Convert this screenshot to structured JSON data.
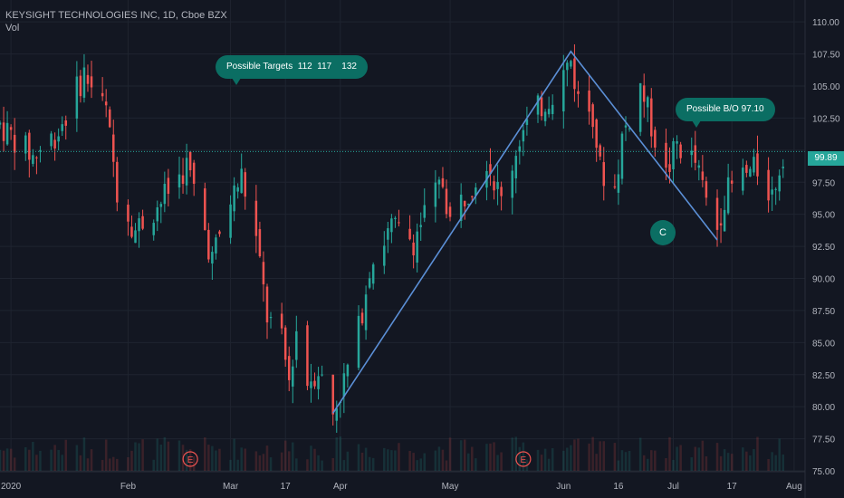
{
  "header": {
    "symbol_line": "KEYSIGHT TECHNOLOGIES INC, 1D, Cboe BZX",
    "volume_label": "Vol"
  },
  "annotations": {
    "targets": "Possible Targets  112  117    132",
    "breakout": "Possible B/O 97.10",
    "wave_label": "C",
    "earnings_marker": "E"
  },
  "last_price": "99.89",
  "colors": {
    "background": "#131722",
    "up": "#26a69a",
    "down": "#ef5350",
    "trendline": "#5b8fd6",
    "bubble": "#0b6e63",
    "grid": "#1f2430",
    "earnings_marker": "#ef5350"
  },
  "chart_data": {
    "type": "candlestick",
    "title": "KEYSIGHT TECHNOLOGIES INC, 1D, Cboe BZX",
    "ylim": [
      75,
      111
    ],
    "y_ticks": [
      75.0,
      77.5,
      80.0,
      82.5,
      85.0,
      87.5,
      90.0,
      92.5,
      95.0,
      97.5,
      100.0,
      102.5,
      105.0,
      107.5,
      110.0
    ],
    "y_tick_labels": [
      "75.00",
      "77.50",
      "80.00",
      "82.50",
      "85.00",
      "87.50",
      "90.00",
      "92.50",
      "95.00",
      "97.50",
      "",
      "102.50",
      "105.00",
      "107.50",
      "110.00"
    ],
    "x_range": [
      "2019-12-30",
      "2020-08-06"
    ],
    "x_ticks": [
      {
        "date": "2020-01-02",
        "label": "2020"
      },
      {
        "date": "2020-02-03",
        "label": "Feb"
      },
      {
        "date": "2020-03-02",
        "label": "Mar"
      },
      {
        "date": "2020-03-17",
        "label": "17"
      },
      {
        "date": "2020-04-01",
        "label": "Apr"
      },
      {
        "date": "2020-05-01",
        "label": "May"
      },
      {
        "date": "2020-06-01",
        "label": "Jun"
      },
      {
        "date": "2020-06-16",
        "label": "16"
      },
      {
        "date": "2020-07-01",
        "label": "Jul"
      },
      {
        "date": "2020-07-17",
        "label": "17"
      },
      {
        "date": "2020-08-03",
        "label": "Aug"
      }
    ],
    "grid": true,
    "last_price": 99.89,
    "anchors": [
      [
        "2019-12-30",
        102.0
      ],
      [
        "2020-01-08",
        99.5
      ],
      [
        "2020-01-15",
        101.5
      ],
      [
        "2020-01-22",
        106.0
      ],
      [
        "2020-01-28",
        103.0
      ],
      [
        "2020-01-31",
        97.0
      ],
      [
        "2020-02-05",
        93.8
      ],
      [
        "2020-02-12",
        96.0
      ],
      [
        "2020-02-19",
        98.8
      ],
      [
        "2020-02-21",
        97.0
      ],
      [
        "2020-02-26",
        91.5
      ],
      [
        "2020-03-02",
        96.0
      ],
      [
        "2020-03-05",
        98.0
      ],
      [
        "2020-03-09",
        93.0
      ],
      [
        "2020-03-12",
        87.0
      ],
      [
        "2020-03-16",
        85.0
      ],
      [
        "2020-03-18",
        82.0
      ],
      [
        "2020-03-20",
        86.0
      ],
      [
        "2020-03-23",
        82.0
      ],
      [
        "2020-03-26",
        83.0
      ],
      [
        "2020-03-30",
        79.5
      ],
      [
        "2020-04-02",
        82.0
      ],
      [
        "2020-04-06",
        86.0
      ],
      [
        "2020-04-09",
        91.0
      ],
      [
        "2020-04-15",
        94.0
      ],
      [
        "2020-04-21",
        93.0
      ],
      [
        "2020-04-24",
        95.0
      ],
      [
        "2020-04-29",
        97.5
      ],
      [
        "2020-05-01",
        94.5
      ],
      [
        "2020-05-05",
        96.5
      ],
      [
        "2020-05-11",
        99.5
      ],
      [
        "2020-05-15",
        96.0
      ],
      [
        "2020-05-20",
        101.0
      ],
      [
        "2020-05-26",
        103.5
      ],
      [
        "2020-05-29",
        104.5
      ],
      [
        "2020-06-03",
        107.0
      ],
      [
        "2020-06-05",
        104.0
      ],
      [
        "2020-06-09",
        103.0
      ],
      [
        "2020-06-11",
        98.5
      ],
      [
        "2020-06-15",
        97.0
      ],
      [
        "2020-06-17",
        101.0
      ],
      [
        "2020-06-22",
        105.0
      ],
      [
        "2020-06-25",
        102.0
      ],
      [
        "2020-06-29",
        98.0
      ],
      [
        "2020-07-02",
        100.5
      ],
      [
        "2020-07-07",
        99.0
      ],
      [
        "2020-07-10",
        96.0
      ],
      [
        "2020-07-13",
        94.0
      ],
      [
        "2020-07-15",
        96.5
      ],
      [
        "2020-07-20",
        98.0
      ],
      [
        "2020-07-24",
        98.5
      ],
      [
        "2020-07-28",
        96.5
      ],
      [
        "2020-07-31",
        99.89
      ]
    ],
    "trendline": [
      [
        "2020-03-30",
        79.5
      ],
      [
        "2020-06-03",
        107.7
      ],
      [
        "2020-07-13",
        93.0
      ]
    ],
    "earnings_dates": [
      "2020-02-20",
      "2020-05-21"
    ]
  }
}
